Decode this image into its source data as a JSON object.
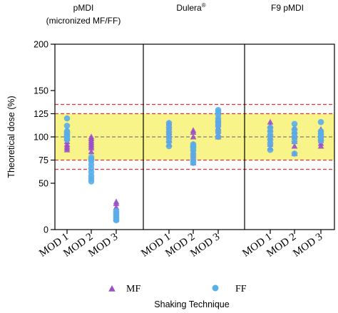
{
  "chart_data": {
    "type": "scatter",
    "ylabel": "Theoretical dose (%)",
    "xlabel": "Shaking Technique",
    "ylim": [
      0,
      200
    ],
    "yticks": [
      0,
      50,
      75,
      100,
      125,
      150,
      200
    ],
    "ytick_labels": [
      "0",
      "50",
      "75",
      "100",
      "125",
      "150",
      "200"
    ],
    "band": {
      "from": 75,
      "to": 125,
      "color": "#f8f48a"
    },
    "dashed_lines": [
      {
        "y": 135,
        "color": "#e0303c"
      },
      {
        "y": 125,
        "color": "#e0303c"
      },
      {
        "y": 100,
        "color": "#7a7a7a"
      },
      {
        "y": 75,
        "color": "#e0303c"
      },
      {
        "y": 65,
        "color": "#e0303c"
      }
    ],
    "colors": {
      "MF": "#9b4fc8",
      "FF": "#5aaee8"
    },
    "legend": [
      {
        "label": "MF",
        "marker": "triangle",
        "color": "#9b4fc8"
      },
      {
        "label": "FF",
        "marker": "circle",
        "color": "#5aaee8"
      }
    ],
    "legend_position": "bottom",
    "panels": [
      {
        "title_line1": "pMDI",
        "title_line2": "(micronized MF/FF)",
        "title_sup": "",
        "categories": [
          "MOD 1",
          "MOD 2",
          "MOD 3"
        ],
        "series": [
          {
            "name": "MF",
            "values": [
              [
                86,
                88,
                90,
                92,
                95,
                98,
                100,
                103,
                105,
                108
              ],
              [
                84,
                88,
                90,
                92,
                94,
                96,
                98,
                100
              ],
              [
                11,
                13,
                15,
                17,
                19,
                21,
                24,
                28,
                30
              ]
            ]
          },
          {
            "name": "FF",
            "values": [
              [
                97,
                99,
                101,
                103,
                104,
                105,
                106,
                112,
                120
              ],
              [
                52,
                55,
                58,
                62,
                66,
                70,
                74,
                76,
                78
              ],
              [
                10,
                12,
                14,
                16,
                18,
                20
              ]
            ]
          }
        ]
      },
      {
        "title_line1": "Dulera",
        "title_line2": "",
        "title_sup": "®",
        "categories": [
          "MOD 1",
          "MOD 2",
          "MOD 3"
        ],
        "series": [
          {
            "name": "MF",
            "values": [
              [
                92,
                96,
                100,
                103,
                105,
                108,
                110,
                113,
                115
              ],
              [
                72,
                76,
                80,
                84,
                88,
                92,
                100,
                105,
                107
              ],
              [
                100,
                103,
                106,
                110,
                113,
                116,
                118,
                120
              ]
            ]
          },
          {
            "name": "FF",
            "values": [
              [
                90,
                95,
                100,
                105,
                110,
                115
              ],
              [
                72,
                75,
                80,
                85,
                88,
                90,
                92
              ],
              [
                100,
                106,
                112,
                116,
                120,
                124,
                127,
                129
              ]
            ]
          }
        ]
      },
      {
        "title_line1": "F9 pMDI",
        "title_line2": "",
        "title_sup": "",
        "categories": [
          "MOD 1",
          "MOD 2",
          "MOD 3"
        ],
        "series": [
          {
            "name": "MF",
            "values": [
              [
                88,
                92,
                96,
                100,
                104,
                108,
                112,
                116
              ],
              [
                82,
                90,
                95,
                100,
                103,
                106,
                110
              ],
              [
                90,
                93,
                96,
                98,
                100,
                103,
                106,
                108
              ]
            ]
          },
          {
            "name": "FF",
            "values": [
              [
                86,
                92,
                97,
                102,
                106,
                110
              ],
              [
                82,
                95,
                100,
                104,
                108,
                114
              ],
              [
                96,
                100,
                103,
                106,
                116
              ]
            ]
          }
        ]
      }
    ]
  }
}
